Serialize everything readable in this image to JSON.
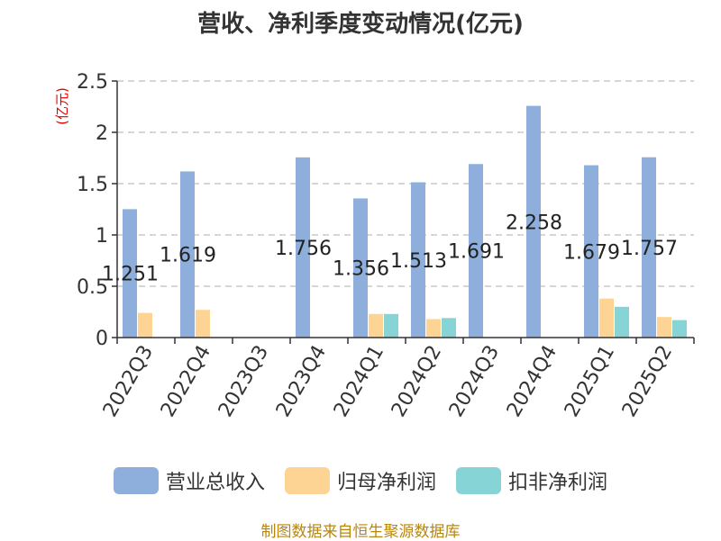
{
  "chart_data": {
    "type": "bar",
    "title": "营收、净利季度变动情况(亿元)",
    "ylabel": "(亿元)",
    "xlabel": "",
    "ylim": [
      0,
      2.5
    ],
    "yticks": [
      0,
      0.5,
      1,
      1.5,
      2,
      2.5
    ],
    "ytick_labels": [
      "0",
      "0.5",
      "1",
      "1.5",
      "2",
      "2.5"
    ],
    "grid": true,
    "legend_position": "bottom",
    "categories": [
      "2022Q3",
      "2022Q4",
      "2023Q3",
      "2023Q4",
      "2024Q1",
      "2024Q2",
      "2024Q3",
      "2024Q4",
      "2025Q1",
      "2025Q2"
    ],
    "series": [
      {
        "name": "营业总收入",
        "color": "#8eafdc",
        "values": [
          1.251,
          1.619,
          null,
          1.756,
          1.356,
          1.513,
          1.691,
          2.258,
          1.679,
          1.757
        ],
        "labels": [
          "1.251",
          "1.619",
          "",
          "1.756",
          "1.356",
          "1.513",
          "1.691",
          "2.258",
          "1.679",
          "1.757"
        ]
      },
      {
        "name": "归母净利润",
        "color": "#fdd493",
        "values": [
          0.24,
          0.27,
          null,
          null,
          0.23,
          0.18,
          null,
          null,
          0.38,
          0.2
        ]
      },
      {
        "name": "扣非净利润",
        "color": "#87d4d6",
        "values": [
          null,
          null,
          null,
          null,
          0.23,
          0.19,
          null,
          null,
          0.3,
          0.17
        ]
      }
    ]
  },
  "footer": {
    "source": "制图数据来自恒生聚源数据库"
  }
}
